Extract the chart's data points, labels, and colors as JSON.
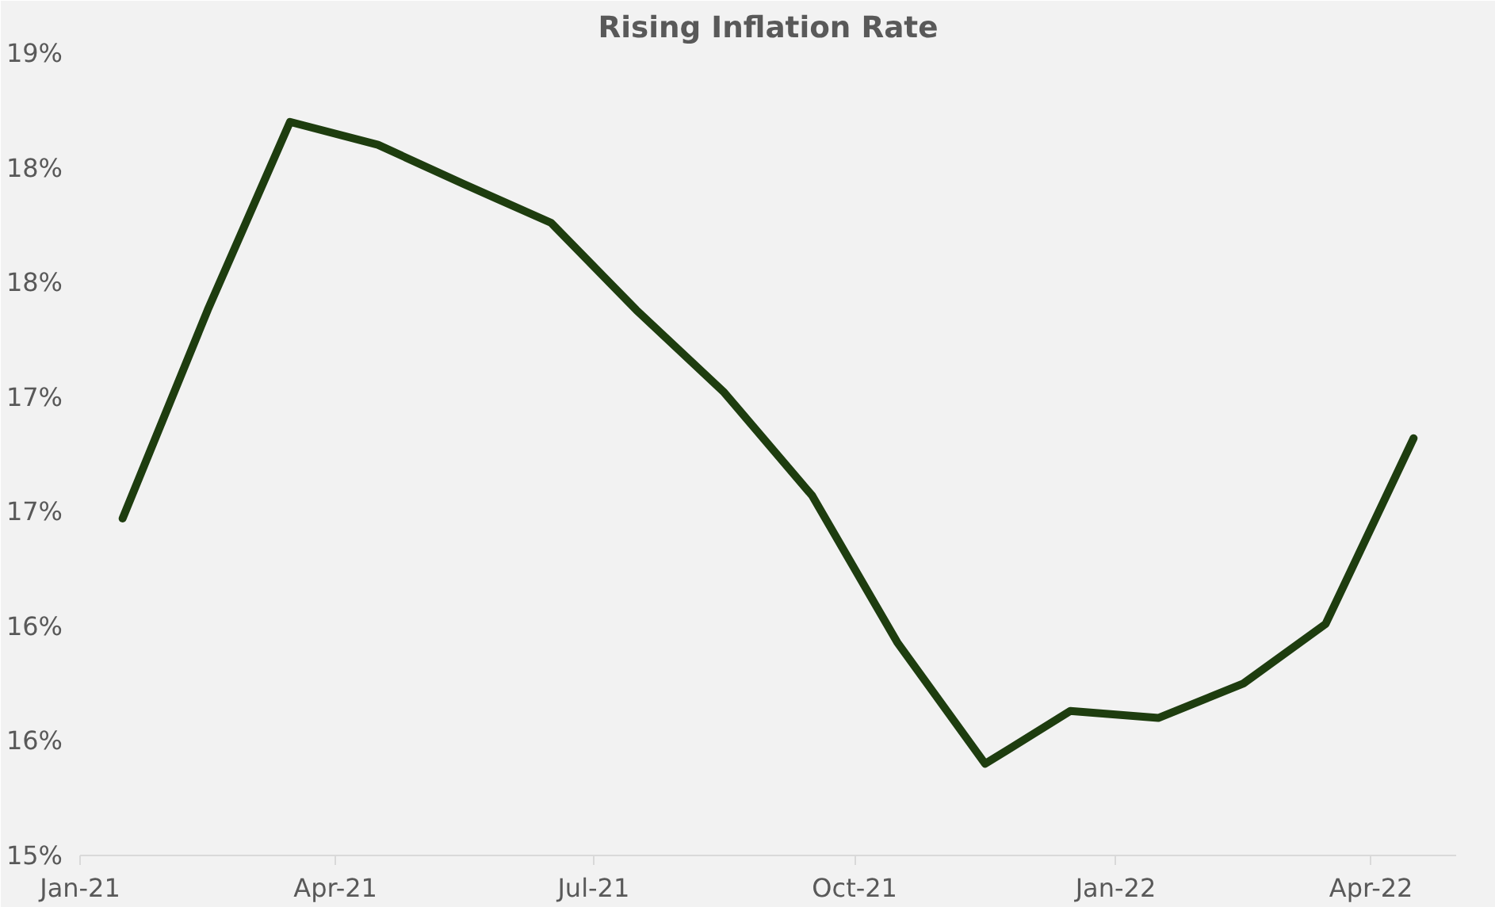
{
  "chart_data": {
    "type": "line",
    "title": "Rising Inflation Rate",
    "x": [
      "2021-01-16",
      "2021-02-15",
      "2021-03-16",
      "2021-04-16",
      "2021-05-16",
      "2021-06-16",
      "2021-07-16",
      "2021-08-16",
      "2021-09-16",
      "2021-10-16",
      "2021-11-16",
      "2021-12-16",
      "2022-01-16",
      "2022-02-15",
      "2022-03-16",
      "2022-04-16"
    ],
    "series": [
      {
        "color": "#1e3d0f",
        "values": [
          16.47,
          17.38,
          18.2,
          18.1,
          17.93,
          17.76,
          17.38,
          17.02,
          16.57,
          15.93,
          15.4,
          15.63,
          15.6,
          15.75,
          16.01,
          16.82
        ]
      }
    ],
    "xlim": [
      "2021-01-01",
      "2022-05-01"
    ],
    "xticks": [
      {
        "value": "2021-01",
        "label": "Jan-21"
      },
      {
        "value": "2021-04",
        "label": "Apr-21"
      },
      {
        "value": "2021-07",
        "label": "Jul-21"
      },
      {
        "value": "2021-10",
        "label": "Oct-21"
      },
      {
        "value": "2022-01",
        "label": "Jan-22"
      },
      {
        "value": "2022-04",
        "label": "Apr-22"
      }
    ],
    "ylim": [
      15,
      18.5
    ],
    "yticks": [
      {
        "value": 15,
        "label": "15%"
      },
      {
        "value": 15.5,
        "label": "16%"
      },
      {
        "value": 16,
        "label": "16%"
      },
      {
        "value": 16.5,
        "label": "17%"
      },
      {
        "value": 17,
        "label": "17%"
      },
      {
        "value": 17.5,
        "label": "18%"
      },
      {
        "value": 18,
        "label": "18%"
      },
      {
        "value": 18.5,
        "label": "19%"
      }
    ],
    "grid": false,
    "marker": "none",
    "line_style": "solid"
  }
}
